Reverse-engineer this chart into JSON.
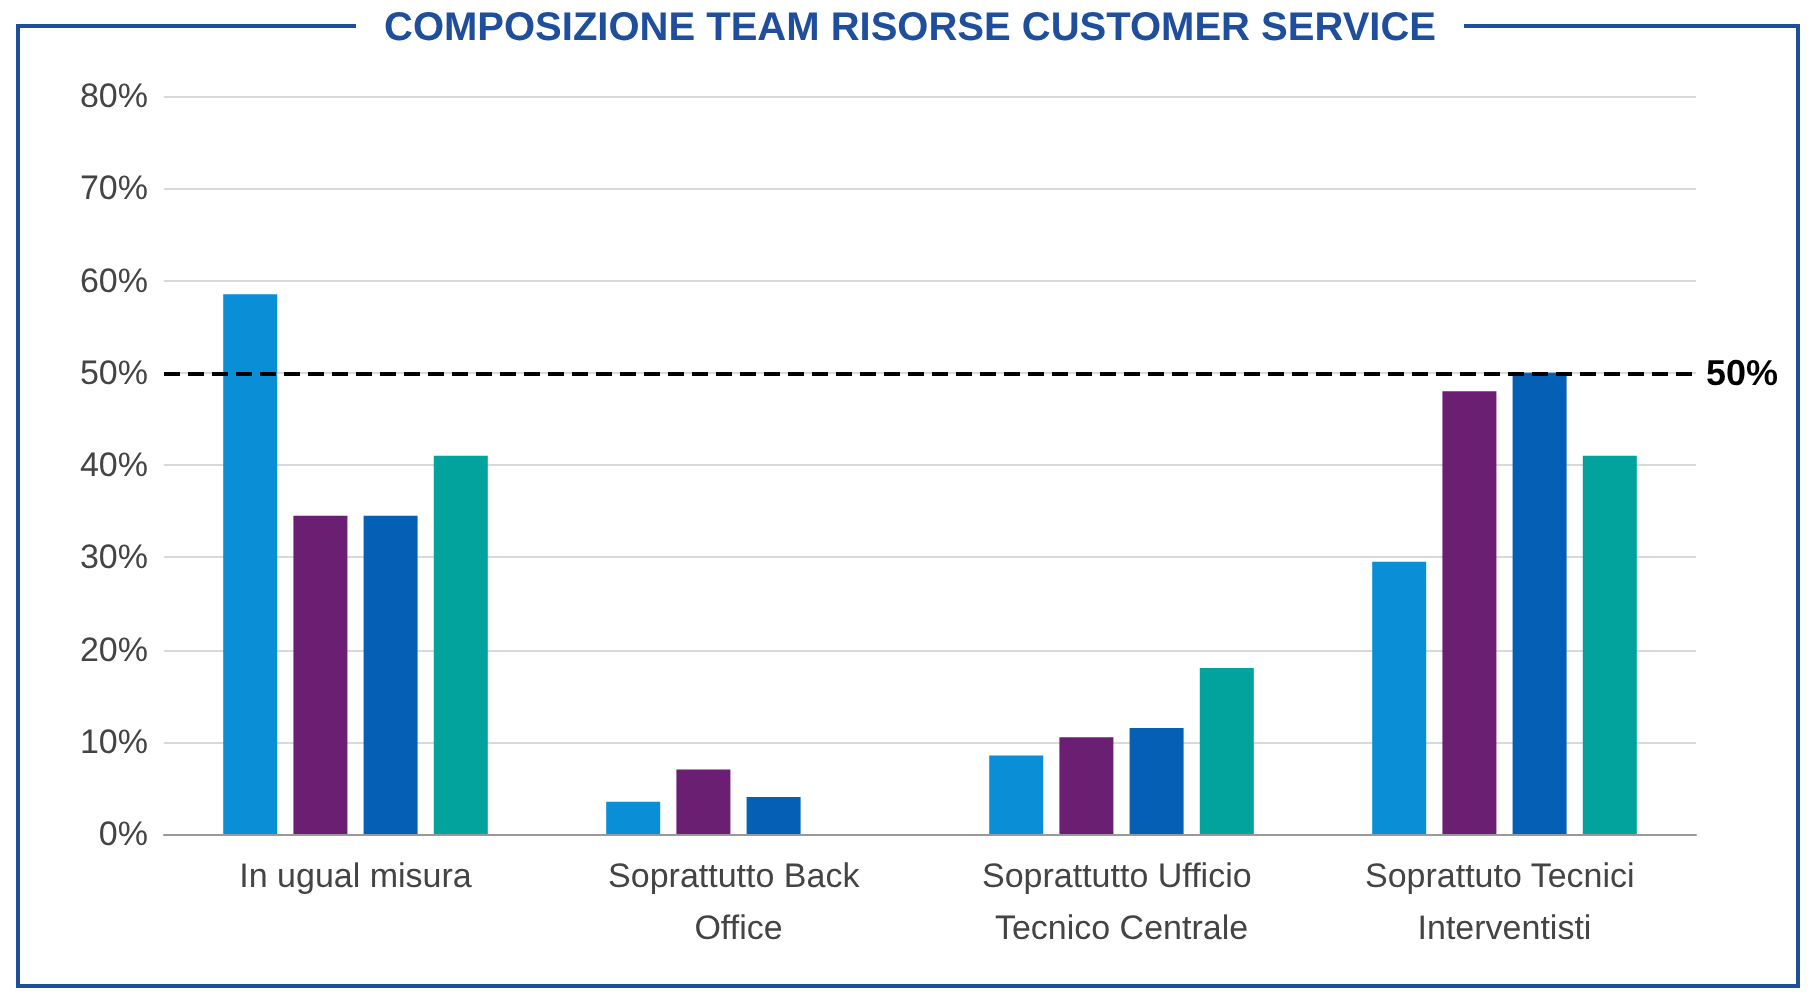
{
  "chart_data": {
    "type": "bar",
    "title": "COMPOSIZIONE TEAM RISORSE CUSTOMER SERVICE",
    "categories": [
      "In ugual misura",
      "Soprattutto Back Office",
      "Soprattutto Ufficio Tecnico Centrale",
      "Soprattuto Tecnici Interventisti"
    ],
    "series": [
      {
        "color": "#0a8fd6",
        "values": [
          58.5,
          3.5,
          8.5,
          29.5
        ]
      },
      {
        "color": "#6b1f73",
        "values": [
          34.5,
          7,
          10.5,
          48
        ]
      },
      {
        "color": "#0560b5",
        "values": [
          34.5,
          4,
          11.5,
          50
        ]
      },
      {
        "color": "#02a39c",
        "values": [
          41,
          0,
          18,
          41
        ]
      }
    ],
    "ylim": [
      0,
      80
    ],
    "yticks": [
      {
        "value": 0,
        "label": "0%"
      },
      {
        "value": 10,
        "label": "10%"
      },
      {
        "value": 20,
        "label": "20%"
      },
      {
        "value": 30,
        "label": "30%"
      },
      {
        "value": 40,
        "label": "40%"
      },
      {
        "value": 50,
        "label": "50%"
      },
      {
        "value": 60,
        "label": "60%"
      },
      {
        "value": 70,
        "label": "70%"
      },
      {
        "value": 80,
        "label": "80%"
      }
    ],
    "grid": "y",
    "ref_lines": [
      {
        "axis": "y",
        "value": 50,
        "label": "50%",
        "color": "#000000",
        "line_style": "dashed"
      }
    ]
  }
}
